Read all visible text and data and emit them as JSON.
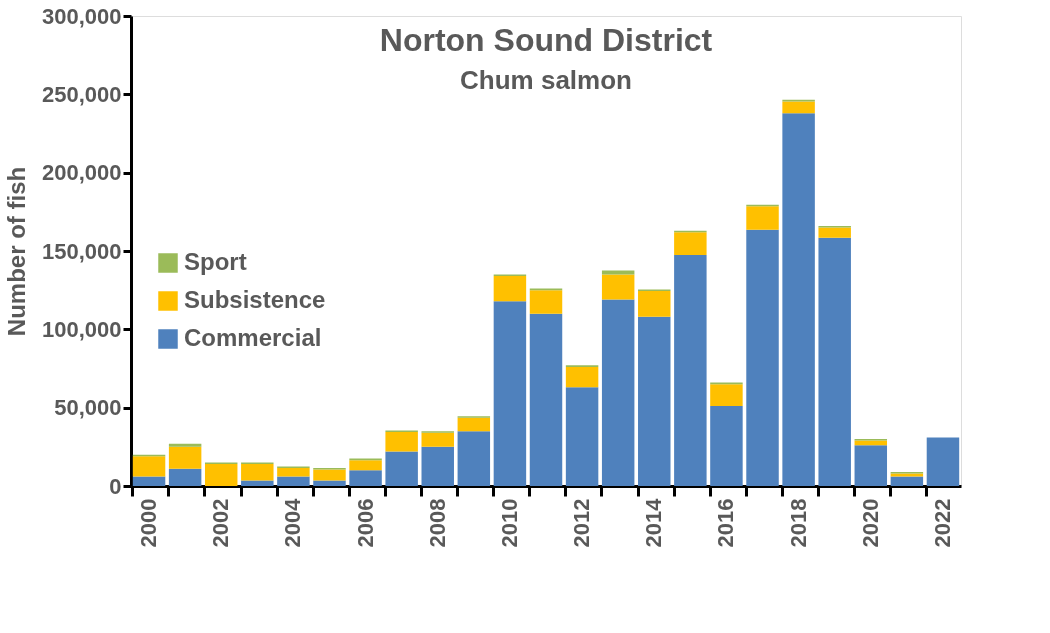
{
  "chart_data": {
    "type": "bar",
    "stacked": true,
    "title": "Norton Sound District",
    "subtitle": "Chum salmon",
    "ylabel": "Number of fish",
    "categories": [
      "2000",
      null,
      "2002",
      null,
      "2004",
      null,
      "2006",
      null,
      "2008",
      null,
      "2010",
      null,
      "2012",
      null,
      "2014",
      null,
      "2016",
      null,
      "2018",
      null,
      "2020",
      null,
      "2022"
    ],
    "series": [
      {
        "name": "Commercial",
        "color": "#4f81bd",
        "values": [
          6000,
          11000,
          0,
          3500,
          6000,
          3500,
          10000,
          22000,
          25000,
          35000,
          118000,
          110000,
          63000,
          119000,
          108000,
          147500,
          51000,
          163500,
          238000,
          158500,
          26000,
          6000,
          31000
        ]
      },
      {
        "name": "Subsistence",
        "color": "#ffc000",
        "values": [
          13000,
          14000,
          14000,
          10500,
          5500,
          7000,
          6500,
          12500,
          9000,
          8500,
          16000,
          15000,
          13000,
          16000,
          16500,
          14500,
          14000,
          15000,
          7500,
          6500,
          3000,
          2000,
          0
        ]
      },
      {
        "name": "Sport",
        "color": "#9bbb59",
        "values": [
          1000,
          2000,
          1000,
          1000,
          1000,
          1000,
          1000,
          1000,
          1000,
          1000,
          1000,
          1000,
          1000,
          2500,
          1000,
          1000,
          1000,
          1000,
          1000,
          1000,
          1000,
          1000,
          0
        ]
      }
    ],
    "ylim": [
      0,
      300000
    ],
    "yticks": [
      0,
      {
        "value": 50000,
        "label": "50,000"
      },
      {
        "value": 100000,
        "label": "100,000"
      },
      {
        "value": 150000,
        "label": "150,000"
      },
      {
        "value": 200000,
        "label": "200,000"
      },
      {
        "value": 250000,
        "label": "250,000"
      },
      {
        "value": 300000,
        "label": "300,000"
      }
    ],
    "grid": false,
    "legend": "left"
  }
}
